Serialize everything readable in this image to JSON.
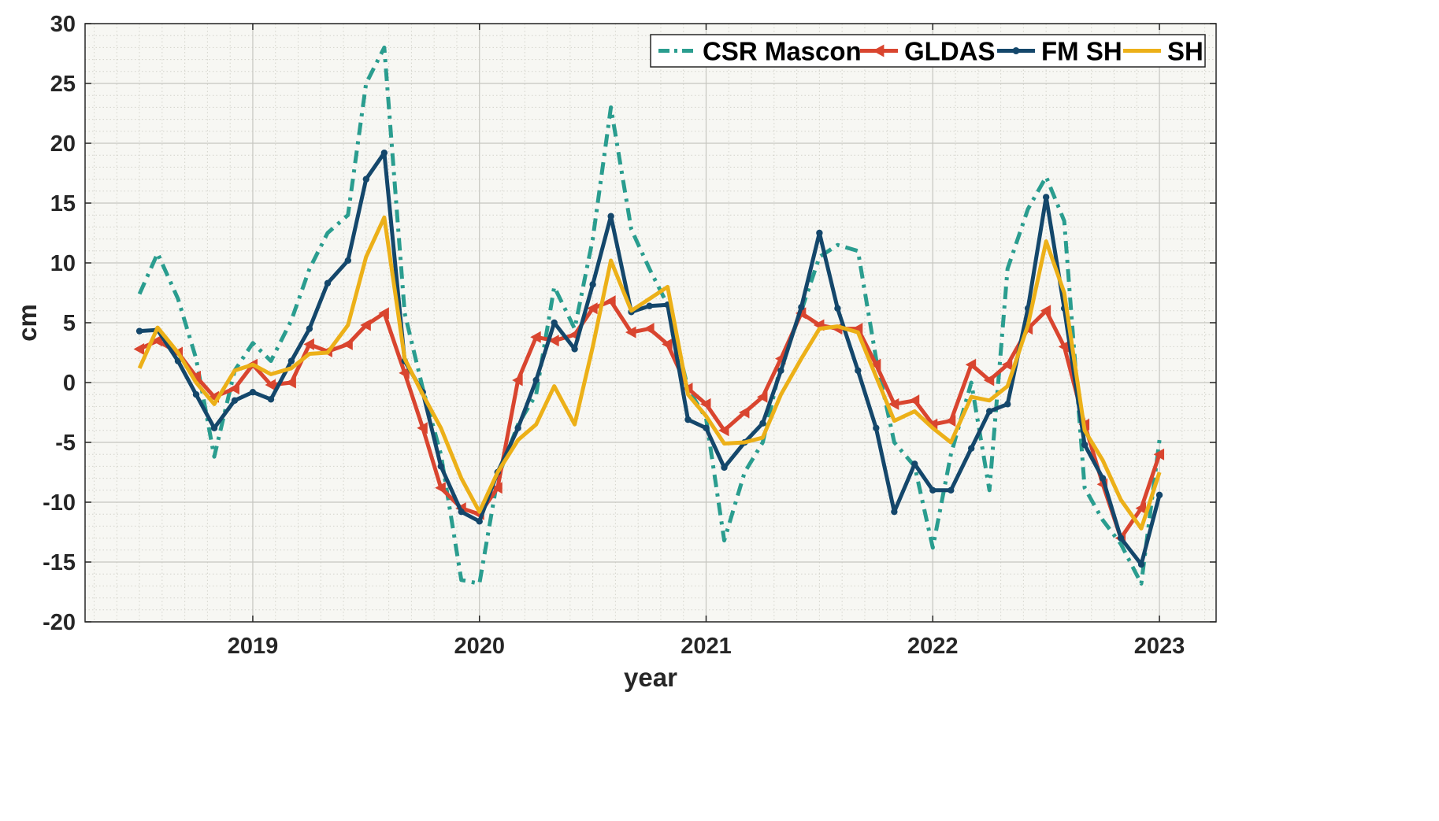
{
  "chart_data": {
    "type": "line",
    "title": "",
    "xlabel": "year",
    "ylabel": "cm",
    "xlim": [
      2018.26,
      2023.25
    ],
    "ylim": [
      -20,
      30
    ],
    "xticks": [
      2019,
      2020,
      2021,
      2022,
      2023
    ],
    "xtick_labels": [
      "2019",
      "2020",
      "2021",
      "2022",
      "2023"
    ],
    "yticks": [
      -20,
      -15,
      -10,
      -5,
      0,
      5,
      10,
      15,
      20,
      25,
      30
    ],
    "ytick_labels": [
      "-20",
      "-15",
      "-10",
      "-5",
      "0",
      "5",
      "10",
      "15",
      "20",
      "25",
      "30"
    ],
    "grid": true,
    "minor_grid": true,
    "legend_position": "top-right",
    "x": [
      2018.5,
      2018.58,
      2018.67,
      2018.75,
      2018.83,
      2018.92,
      2019.0,
      2019.08,
      2019.17,
      2019.25,
      2019.33,
      2019.42,
      2019.5,
      2019.58,
      2019.67,
      2019.75,
      2019.83,
      2019.92,
      2020.0,
      2020.08,
      2020.17,
      2020.25,
      2020.33,
      2020.42,
      2020.5,
      2020.58,
      2020.67,
      2020.75,
      2020.83,
      2020.92,
      2021.0,
      2021.08,
      2021.17,
      2021.25,
      2021.33,
      2021.42,
      2021.5,
      2021.58,
      2021.67,
      2021.75,
      2021.83,
      2021.92,
      2022.0,
      2022.08,
      2022.17,
      2022.25,
      2022.33,
      2022.42,
      2022.5,
      2022.58,
      2022.67,
      2022.75,
      2022.83,
      2022.92,
      2023.0
    ],
    "series": [
      {
        "name": "CSR Mascon",
        "color": "#2a9d8f",
        "style": "dashdot",
        "marker": "none",
        "values": [
          7.4,
          10.8,
          7.0,
          2.0,
          -6.2,
          1.0,
          3.3,
          1.8,
          5.2,
          9.5,
          12.5,
          14.0,
          25.0,
          28.0,
          5.8,
          -0.5,
          -6.0,
          -16.5,
          -16.8,
          -8.0,
          -3.5,
          -1.0,
          8.0,
          4.5,
          12.0,
          23.0,
          12.8,
          9.5,
          6.5,
          -0.5,
          -3.0,
          -13.2,
          -7.5,
          -5.0,
          1.5,
          6.0,
          10.5,
          11.5,
          11.0,
          2.0,
          -5.0,
          -7.0,
          -13.8,
          -6.0,
          0.0,
          -9.0,
          9.5,
          14.5,
          17.2,
          13.5,
          -8.8,
          -11.5,
          -13.5,
          -16.8,
          -4.8
        ]
      },
      {
        "name": "GLDAS",
        "color": "#d9452f",
        "style": "solid",
        "marker": "triangle-left",
        "values": [
          2.8,
          3.5,
          2.5,
          0.5,
          -1.2,
          -0.5,
          1.5,
          -0.2,
          0.0,
          3.2,
          2.6,
          3.2,
          4.8,
          5.8,
          0.8,
          -3.8,
          -8.8,
          -10.5,
          -11.0,
          -8.8,
          0.2,
          3.8,
          3.5,
          4.0,
          6.2,
          6.8,
          4.2,
          4.5,
          3.2,
          -0.5,
          -1.8,
          -4.0,
          -2.5,
          -1.2,
          2.0,
          5.8,
          4.8,
          4.5,
          4.5,
          1.5,
          -1.8,
          -1.5,
          -3.5,
          -3.2,
          1.5,
          0.2,
          1.5,
          4.5,
          6.0,
          3.0,
          -3.5,
          -8.5,
          -13.0,
          -10.5,
          -6.0
        ]
      },
      {
        "name": "FM SH",
        "color": "#14476b",
        "style": "solid",
        "marker": "dot",
        "values": [
          4.3,
          4.4,
          1.8,
          -1.0,
          -3.8,
          -1.5,
          -0.8,
          -1.4,
          1.8,
          4.5,
          8.3,
          10.2,
          17.0,
          19.2,
          1.8,
          -0.8,
          -7.0,
          -10.8,
          -11.6,
          -7.5,
          -3.8,
          0.2,
          5.0,
          2.8,
          8.2,
          13.9,
          5.9,
          6.4,
          6.5,
          -3.1,
          -3.8,
          -7.1,
          -5.0,
          -3.4,
          1.0,
          6.3,
          12.5,
          6.2,
          1.0,
          -3.8,
          -10.8,
          -6.8,
          -9.0,
          -9.0,
          -5.5,
          -2.4,
          -1.8,
          6.2,
          15.5,
          6.2,
          -5.2,
          -8.0,
          -13.0,
          -15.2,
          -9.4
        ]
      },
      {
        "name": "SH",
        "color": "#ecb018",
        "style": "solid",
        "marker": "none",
        "values": [
          1.2,
          4.6,
          2.5,
          0.0,
          -1.8,
          1.0,
          1.5,
          0.7,
          1.2,
          2.4,
          2.5,
          4.8,
          10.5,
          13.8,
          2.0,
          -1.0,
          -3.8,
          -8.0,
          -10.8,
          -7.5,
          -4.8,
          -3.5,
          -0.3,
          -3.5,
          3.0,
          10.2,
          6.0,
          7.0,
          8.0,
          -1.0,
          -2.8,
          -5.1,
          -5.0,
          -4.6,
          -1.0,
          2.0,
          4.5,
          4.7,
          4.2,
          0.5,
          -3.2,
          -2.4,
          -3.8,
          -5.0,
          -1.2,
          -1.5,
          -0.3,
          4.8,
          11.8,
          7.5,
          -4.0,
          -6.5,
          -9.8,
          -12.2,
          -7.5
        ]
      }
    ]
  }
}
